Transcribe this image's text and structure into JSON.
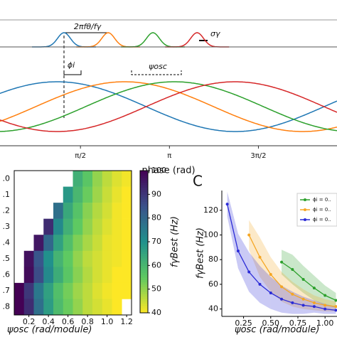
{
  "chart_data": [
    {
      "type": "line",
      "xlabel": "phase (rad)",
      "xlim": [
        0.15,
        6.1
      ],
      "xticks": [
        {
          "value": 1.5708,
          "label": "π/2"
        },
        {
          "value": 3.1416,
          "label": "π"
        },
        {
          "value": 4.7124,
          "label": "3π/2"
        }
      ],
      "annotations": [
        "2πfθ/fγ",
        "σγ",
        "ϕi",
        "ψosc"
      ],
      "series": [
        {
          "color": "#1f77b4",
          "peak": 1.16
        },
        {
          "color": "#ff7f0e",
          "peak": 2.35
        },
        {
          "color": "#2ca02c",
          "peak": 3.23
        },
        {
          "color": "#d62728",
          "peak": 4.3
        }
      ],
      "bumps": [
        {
          "color": "#1f77b4",
          "peak": 1.28
        },
        {
          "color": "#ff7f0e",
          "peak": 2.06
        },
        {
          "color": "#2ca02c",
          "peak": 2.85
        },
        {
          "color": "#d62728",
          "peak": 3.63
        }
      ]
    },
    {
      "type": "heatmap",
      "xlabel": "ψosc (rad/module)",
      "categories": [
        ".0",
        ".1",
        ".2",
        ".3",
        ".4",
        ".5",
        ".6",
        ".7",
        ".8"
      ],
      "x": [
        0.1,
        0.2,
        0.3,
        0.4,
        0.5,
        0.6,
        0.7,
        0.8,
        0.9,
        1.0,
        1.1,
        1.2
      ],
      "xlim": [
        0.05,
        1.25
      ],
      "xticks": [
        0.2,
        0.4,
        0.6,
        0.8,
        {
          "value": 1.0,
          "label": "1.0"
        },
        1.2
      ],
      "values": [
        [
          null,
          null,
          null,
          null,
          null,
          null,
          62,
          56,
          50,
          46,
          43,
          41
        ],
        [
          null,
          null,
          null,
          null,
          null,
          68,
          60,
          54,
          49,
          45,
          42,
          40
        ],
        [
          null,
          null,
          null,
          null,
          78,
          64,
          57,
          51,
          47,
          44,
          41,
          40
        ],
        [
          null,
          null,
          null,
          92,
          72,
          62,
          55,
          50,
          46,
          43,
          41,
          40
        ],
        [
          null,
          null,
          96,
          80,
          66,
          58,
          52,
          48,
          45,
          42,
          41,
          40
        ],
        [
          null,
          97,
          84,
          70,
          61,
          55,
          50,
          46,
          44,
          42,
          41,
          40
        ],
        [
          null,
          98,
          86,
          72,
          63,
          56,
          51,
          47,
          44,
          42,
          40,
          40
        ],
        [
          100,
          90,
          76,
          66,
          58,
          53,
          49,
          46,
          43,
          41,
          40,
          40
        ],
        [
          100,
          92,
          78,
          67,
          59,
          54,
          50,
          46,
          44,
          42,
          40,
          null
        ]
      ],
      "colormap": "viridis_r",
      "colorbar": {
        "label": "fγBest (Hz)",
        "lim": [
          40,
          100
        ],
        "ticks": [
          40,
          50,
          60,
          70,
          80,
          90,
          100
        ]
      }
    },
    {
      "type": "line",
      "panel_label": "C",
      "xlabel": "ψosc (rad/module)",
      "ylabel": "fγBest (Hz)",
      "x": [
        0.1,
        0.2,
        0.3,
        0.4,
        0.5,
        0.6,
        0.7,
        0.8,
        0.9,
        1.0,
        1.1
      ],
      "xlim": [
        0.05,
        1.11
      ],
      "ylim": [
        34,
        136
      ],
      "xticks": [
        0.25,
        {
          "value": 0.5,
          "label": "0.50"
        },
        0.75,
        {
          "value": 1.0,
          "label": "1.00"
        }
      ],
      "yticks": [
        40,
        60,
        80,
        100,
        120
      ],
      "legend": "upper right",
      "series": [
        {
          "name": "ϕi = 0..",
          "color": "#2ca02c",
          "values": [
            null,
            null,
            null,
            null,
            null,
            78,
            72,
            64,
            57,
            51,
            47
          ],
          "errors": [
            null,
            null,
            null,
            null,
            null,
            10,
            12,
            11,
            10,
            8,
            6
          ]
        },
        {
          "name": "ϕi = 0..",
          "color": "#f5a623",
          "values": [
            null,
            null,
            100,
            82,
            68,
            58,
            52,
            48,
            45,
            43,
            42
          ],
          "errors": [
            null,
            null,
            12,
            16,
            14,
            12,
            10,
            8,
            6,
            5,
            4
          ]
        },
        {
          "name": "ϕi = 0..",
          "color": "#2b2bd6",
          "values": [
            125,
            87,
            70,
            60,
            53,
            48,
            45,
            43,
            42,
            40,
            39
          ],
          "errors": [
            10,
            14,
            16,
            15,
            13,
            11,
            9,
            7,
            5,
            4,
            3
          ]
        }
      ]
    }
  ]
}
